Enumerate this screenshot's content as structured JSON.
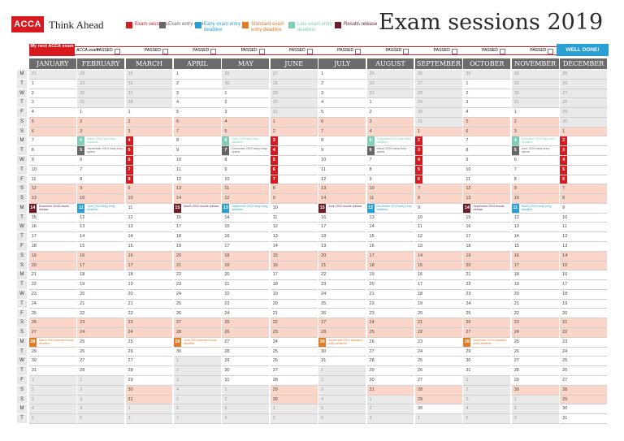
{
  "brand": {
    "logo_text": "ACCA",
    "tagline": "Think Ahead"
  },
  "title": "Exam sessions 2019",
  "colors": {
    "exam": "#d71920",
    "entry_open": "#666666",
    "early": "#2a9fd6",
    "standard": "#e07b26",
    "late": "#7fcfb8",
    "results": "#6b1d2a",
    "header": "#6b6b6b",
    "weekend": "#fbd6c8",
    "outside": "#e9e9e9"
  },
  "legend": [
    {
      "key": "exam",
      "label": "Exam sessions"
    },
    {
      "key": "entry_open",
      "label": "Exam entry open"
    },
    {
      "key": "early",
      "label": "Early exam entry deadline"
    },
    {
      "key": "standard",
      "label": "Standard exam entry deadline"
    },
    {
      "key": "late",
      "label": "Late exam entry deadline"
    },
    {
      "key": "results",
      "label": "Results release"
    }
  ],
  "tracker": {
    "first_label": "My next ACCA exam",
    "last_label": "WELL DONE!",
    "exam_name_placeholder": "ACCA exam",
    "passed_label": "PASSED",
    "slots": 10
  },
  "weekdays": [
    "M",
    "T",
    "W",
    "T",
    "F",
    "S",
    "S"
  ],
  "months": [
    "January",
    "February",
    "March",
    "April",
    "May",
    "June",
    "July",
    "August",
    "September",
    "October",
    "November",
    "December"
  ],
  "year": 2019,
  "events": {
    "2019-03-04": {
      "type": "exam"
    },
    "2019-03-05": {
      "type": "exam"
    },
    "2019-03-06": {
      "type": "exam"
    },
    "2019-03-07": {
      "type": "exam"
    },
    "2019-03-08": {
      "type": "exam"
    },
    "2019-06-03": {
      "type": "exam"
    },
    "2019-06-04": {
      "type": "exam"
    },
    "2019-06-05": {
      "type": "exam"
    },
    "2019-06-06": {
      "type": "exam"
    },
    "2019-06-07": {
      "type": "exam"
    },
    "2019-09-02": {
      "type": "exam"
    },
    "2019-09-03": {
      "type": "exam"
    },
    "2019-09-04": {
      "type": "exam"
    },
    "2019-09-05": {
      "type": "exam"
    },
    "2019-09-06": {
      "type": "exam"
    },
    "2019-12-02": {
      "type": "exam"
    },
    "2019-12-03": {
      "type": "exam"
    },
    "2019-12-04": {
      "type": "exam"
    },
    "2019-12-05": {
      "type": "exam"
    },
    "2019-12-06": {
      "type": "exam"
    },
    "2019-01-14": {
      "type": "results",
      "note": "December 2018 results release"
    },
    "2019-02-04": {
      "type": "late",
      "note": "March 2019 late entry deadline"
    },
    "2019-02-05": {
      "type": "entry_open",
      "note": "September 2019 early entry opens"
    },
    "2019-02-11": {
      "type": "early",
      "note": "June 2019 early entry deadline"
    },
    "2019-01-28": {
      "type": "standard",
      "note": "March 2019 standard entry deadline"
    },
    "2019-04-15": {
      "type": "results",
      "note": "March 2019 results release"
    },
    "2019-04-29": {
      "type": "standard",
      "note": "June 2019 standard entry deadline"
    },
    "2019-05-06": {
      "type": "late",
      "note": "June 2019 late entry deadline"
    },
    "2019-05-07": {
      "type": "entry_open",
      "note": "December 2019 early entry opens"
    },
    "2019-05-13": {
      "type": "early",
      "note": "September 2019 early entry deadline"
    },
    "2019-07-15": {
      "type": "results",
      "note": "June 2019 results release"
    },
    "2019-07-29": {
      "type": "standard",
      "note": "September 2019 standard entry deadline"
    },
    "2019-08-05": {
      "type": "late",
      "note": "September 2019 late entry deadline"
    },
    "2019-08-06": {
      "type": "entry_open",
      "note": "March 2020 early entry opens"
    },
    "2019-08-12": {
      "type": "early",
      "note": "December 2019 early entry deadline"
    },
    "2019-10-14": {
      "type": "results",
      "note": "September 2019 results release"
    },
    "2019-10-28": {
      "type": "standard",
      "note": "December 2019 standard entry deadline"
    },
    "2019-11-04": {
      "type": "late",
      "note": "December 2019 late entry deadline"
    },
    "2019-11-05": {
      "type": "entry_open",
      "note": "June 2020 early entry opens"
    },
    "2019-11-11": {
      "type": "early",
      "note": "March 2020 early entry deadline"
    }
  }
}
